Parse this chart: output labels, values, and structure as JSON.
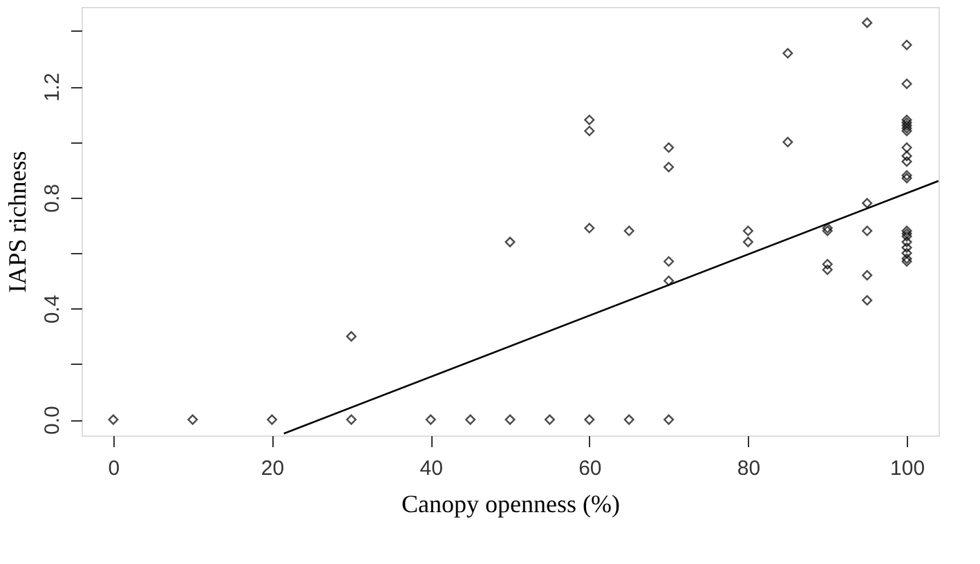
{
  "chart_data": {
    "type": "scatter",
    "xlabel": "Canopy openness (%)",
    "ylabel": "IAPS richness",
    "marker": "diamond",
    "grid": false,
    "xlim": [
      -4,
      104
    ],
    "ylim": [
      -0.057,
      1.487
    ],
    "xticks": [
      0,
      20,
      40,
      60,
      80,
      100
    ],
    "yticks": [
      {
        "value": 0,
        "label": "0.0"
      },
      {
        "value": 0.2,
        "label": null
      },
      {
        "value": 0.4,
        "label": "0.4"
      },
      {
        "value": 0.6,
        "label": null
      },
      {
        "value": 0.8,
        "label": "0.8"
      },
      {
        "value": 1.0,
        "label": null
      },
      {
        "value": 1.2,
        "label": "1.2"
      },
      {
        "value": 1.4,
        "label": null
      }
    ],
    "series": [
      {
        "color": "#000000",
        "x": [
          0,
          10,
          20,
          30,
          30,
          40,
          45,
          50,
          55,
          60,
          65,
          70,
          50,
          60,
          60,
          60,
          65,
          70,
          70,
          70,
          70,
          80,
          80,
          85,
          85,
          90,
          90,
          90,
          90,
          95,
          95,
          95,
          95,
          95,
          100,
          100,
          100,
          100,
          100,
          100,
          100,
          100,
          100,
          100,
          100,
          100,
          100,
          100,
          100,
          100,
          100,
          100,
          100,
          100
        ],
        "values": [
          0,
          0,
          0,
          0.3,
          0,
          0,
          0,
          0,
          0,
          0,
          0,
          0,
          0.64,
          1.08,
          1.04,
          0.69,
          0.68,
          0.98,
          0.91,
          0.57,
          0.5,
          0.68,
          0.64,
          1.32,
          1.0,
          0.69,
          0.68,
          0.56,
          0.54,
          1.43,
          0.78,
          0.68,
          0.52,
          0.43,
          1.35,
          1.21,
          1.08,
          1.07,
          1.06,
          1.05,
          1.04,
          0.98,
          0.95,
          0.93,
          0.88,
          0.87,
          0.68,
          0.67,
          0.66,
          0.64,
          0.62,
          0.6,
          0.58,
          0.57
        ]
      },
      {
        "type": "line",
        "marker": "none",
        "color": "#000000",
        "x": [
          21.5,
          104
        ],
        "values": [
          -0.05,
          0.86
        ]
      }
    ]
  }
}
